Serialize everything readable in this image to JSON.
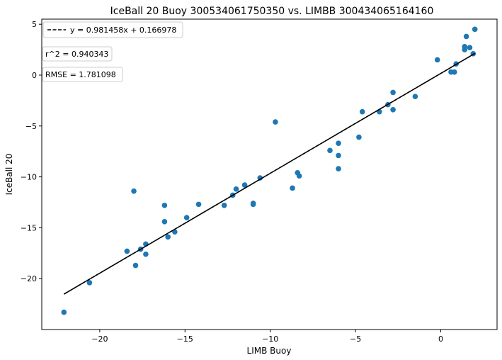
{
  "chart_data": {
    "type": "scatter",
    "title": "IceBall 20 Buoy 300534061750350 vs. LIMBB 300434065164160",
    "xlabel": "LIMB Buoy",
    "ylabel": "IceBall 20",
    "xlim": [
      -23.4,
      3.3
    ],
    "ylim": [
      -25.0,
      5.5
    ],
    "x_ticks": [
      -20,
      -15,
      -10,
      -5,
      0
    ],
    "x_tick_labels": [
      "−20",
      "−15",
      "−10",
      "−5",
      "0"
    ],
    "y_ticks": [
      -20,
      -15,
      -10,
      -5,
      0,
      5
    ],
    "y_tick_labels": [
      "−20",
      "−15",
      "−10",
      "−5",
      "0",
      "5"
    ],
    "grid": false,
    "legend": {
      "placement": "top-left",
      "label": "y = 0.981458x + 0.166978"
    },
    "annotations": [
      "r^2 = 0.940343",
      "RMSE = 1.781098"
    ],
    "fit": {
      "slope": 0.981458,
      "intercept": 0.166978,
      "x_range": [
        -22.1,
        2.0
      ]
    },
    "marker_color": "#1f77b4",
    "points": [
      [
        -22.1,
        -23.3
      ],
      [
        -20.6,
        -20.4
      ],
      [
        -18.4,
        -17.3
      ],
      [
        -17.9,
        -18.7
      ],
      [
        -17.6,
        -17.1
      ],
      [
        -17.3,
        -17.6
      ],
      [
        -17.3,
        -16.6
      ],
      [
        -18.0,
        -11.4
      ],
      [
        -16.2,
        -12.8
      ],
      [
        -16.2,
        -14.4
      ],
      [
        -16.0,
        -15.9
      ],
      [
        -15.6,
        -15.4
      ],
      [
        -14.9,
        -14.0
      ],
      [
        -14.2,
        -12.7
      ],
      [
        -12.7,
        -12.8
      ],
      [
        -12.2,
        -11.8
      ],
      [
        -12.0,
        -11.2
      ],
      [
        -11.5,
        -10.8
      ],
      [
        -11.0,
        -12.6
      ],
      [
        -11.0,
        -12.7
      ],
      [
        -10.6,
        -10.1
      ],
      [
        -9.7,
        -4.6
      ],
      [
        -8.7,
        -11.1
      ],
      [
        -8.4,
        -9.6
      ],
      [
        -8.3,
        -9.9
      ],
      [
        -6.5,
        -7.4
      ],
      [
        -6.0,
        -6.7
      ],
      [
        -6.0,
        -7.9
      ],
      [
        -6.0,
        -9.2
      ],
      [
        -4.8,
        -6.1
      ],
      [
        -4.6,
        -3.6
      ],
      [
        -3.6,
        -3.6
      ],
      [
        -3.1,
        -2.9
      ],
      [
        -2.8,
        -1.7
      ],
      [
        -2.8,
        -3.4
      ],
      [
        -1.5,
        -2.1
      ],
      [
        -0.2,
        1.5
      ],
      [
        0.6,
        0.3
      ],
      [
        0.8,
        0.3
      ],
      [
        0.9,
        1.1
      ],
      [
        1.4,
        2.8
      ],
      [
        1.4,
        2.5
      ],
      [
        1.5,
        3.8
      ],
      [
        1.7,
        2.7
      ],
      [
        1.9,
        2.1
      ],
      [
        2.0,
        4.5
      ]
    ]
  }
}
